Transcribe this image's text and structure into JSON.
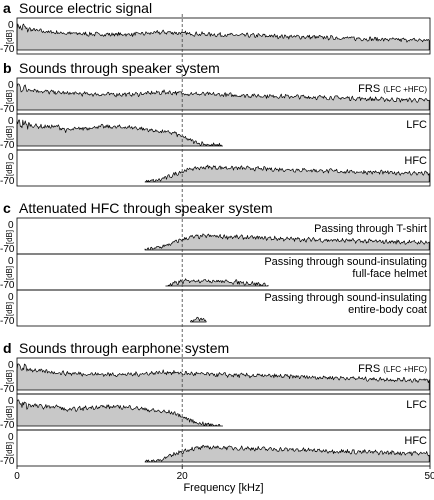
{
  "chart_data": {
    "type": "area",
    "x_axis": {
      "label": "Frequency [kHz]",
      "range": [
        0,
        50
      ],
      "ticks": [
        "0",
        "20",
        "50"
      ],
      "marker_line": 20
    },
    "y_axis": {
      "label": "[dB]",
      "range": [
        -70,
        0
      ],
      "ticks": [
        "0",
        "-70"
      ]
    },
    "sections": [
      {
        "letter": "a",
        "title": "Source electric signal",
        "panels": [
          {
            "label": "",
            "profile": "full"
          }
        ]
      },
      {
        "letter": "b",
        "title": "Sounds through speaker system",
        "panels": [
          {
            "label": "FRS",
            "sublabel": "(LFC +HFC)",
            "profile": "full"
          },
          {
            "label": "LFC",
            "profile": "lfc"
          },
          {
            "label": "HFC",
            "profile": "hfc"
          }
        ]
      },
      {
        "letter": "c",
        "title": "Attenuated HFC through speaker system",
        "panels": [
          {
            "label": "Passing through T-shirt",
            "profile": "tshirt"
          },
          {
            "label": "Passing through sound-insulating",
            "label2": "full-face helmet",
            "profile": "helmet"
          },
          {
            "label": "Passing through sound-insulating",
            "label2": "entire-body coat",
            "profile": "coat"
          }
        ]
      },
      {
        "letter": "d",
        "title": "Sounds through earphone system",
        "panels": [
          {
            "label": "FRS",
            "sublabel": "(LFC +HFC)",
            "profile": "full"
          },
          {
            "label": "LFC",
            "profile": "lfc"
          },
          {
            "label": "HFC",
            "profile": "hfc"
          }
        ]
      }
    ],
    "profiles": {
      "full": [
        [
          0,
          -5
        ],
        [
          1,
          -12
        ],
        [
          3,
          -20
        ],
        [
          6,
          -25
        ],
        [
          10,
          -28
        ],
        [
          14,
          -28
        ],
        [
          18,
          -22
        ],
        [
          20,
          -25
        ],
        [
          22,
          -27
        ],
        [
          26,
          -30
        ],
        [
          30,
          -32
        ],
        [
          35,
          -35
        ],
        [
          40,
          -38
        ],
        [
          45,
          -42
        ],
        [
          50,
          -44
        ]
      ],
      "lfc": [
        [
          0,
          -5
        ],
        [
          1,
          -12
        ],
        [
          3,
          -18
        ],
        [
          5,
          -18
        ],
        [
          6,
          -28
        ],
        [
          7,
          -25
        ],
        [
          10,
          -18
        ],
        [
          14,
          -20
        ],
        [
          17,
          -30
        ],
        [
          19,
          -35
        ],
        [
          20,
          -45
        ],
        [
          21,
          -55
        ],
        [
          22,
          -62
        ],
        [
          23,
          -66
        ],
        [
          25,
          -70
        ]
      ],
      "hfc": [
        [
          15.5,
          -70
        ],
        [
          17,
          -66
        ],
        [
          18.5,
          -55
        ],
        [
          19.5,
          -45
        ],
        [
          21,
          -35
        ],
        [
          23,
          -30
        ],
        [
          26,
          -32
        ],
        [
          30,
          -35
        ],
        [
          35,
          -38
        ],
        [
          40,
          -42
        ],
        [
          45,
          -45
        ],
        [
          50,
          -47
        ]
      ],
      "tshirt": [
        [
          15.5,
          -70
        ],
        [
          17,
          -64
        ],
        [
          18.5,
          -55
        ],
        [
          19.5,
          -45
        ],
        [
          21,
          -36
        ],
        [
          23,
          -32
        ],
        [
          26,
          -35
        ],
        [
          30,
          -38
        ],
        [
          35,
          -42
        ],
        [
          40,
          -45
        ],
        [
          45,
          -48
        ],
        [
          50,
          -50
        ]
      ],
      "helmet": [
        [
          18,
          -70
        ],
        [
          19,
          -64
        ],
        [
          20,
          -58
        ],
        [
          21.5,
          -55
        ],
        [
          23,
          -55
        ],
        [
          25,
          -58
        ],
        [
          27,
          -60
        ],
        [
          29,
          -64
        ],
        [
          30.5,
          -70
        ]
      ],
      "coat": [
        [
          21,
          -70
        ],
        [
          21.5,
          -64
        ],
        [
          22,
          -62
        ],
        [
          22.5,
          -63
        ],
        [
          23,
          -70
        ]
      ]
    }
  }
}
